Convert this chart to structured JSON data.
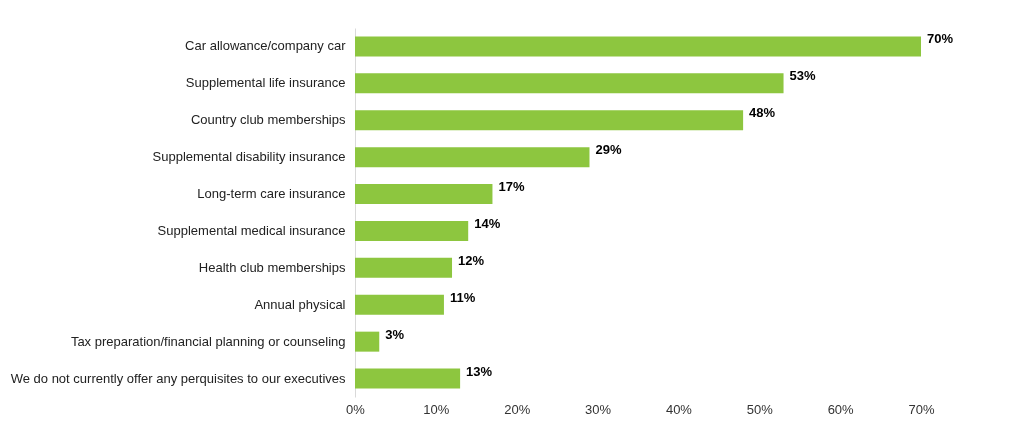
{
  "chart_data": {
    "type": "bar",
    "orientation": "horizontal",
    "categories": [
      "Car allowance/company car",
      "Supplemental life insurance",
      "Country club memberships",
      "Supplemental disability insurance",
      "Long-term care insurance",
      "Supplemental medical insurance",
      "Health club memberships",
      "Annual physical",
      "Tax preparation/financial planning or counseling",
      "We do not currently offer any perquisites to our executives"
    ],
    "values": [
      70,
      53,
      48,
      29,
      17,
      14,
      12,
      11,
      3,
      13
    ],
    "value_labels": [
      "70%",
      "53%",
      "48%",
      "29%",
      "17%",
      "14%",
      "12%",
      "11%",
      "3%",
      "13%"
    ],
    "color": "#8dc63f",
    "xlim": [
      0,
      70
    ],
    "xticks": [
      {
        "value": 0,
        "label": "0%"
      },
      {
        "value": 10,
        "label": "10%"
      },
      {
        "value": 20,
        "label": "20%"
      },
      {
        "value": 30,
        "label": "30%"
      },
      {
        "value": 40,
        "label": "40%"
      },
      {
        "value": 50,
        "label": "50%"
      },
      {
        "value": 60,
        "label": "60%"
      },
      {
        "value": 70,
        "label": "70%"
      }
    ],
    "grid": false
  }
}
